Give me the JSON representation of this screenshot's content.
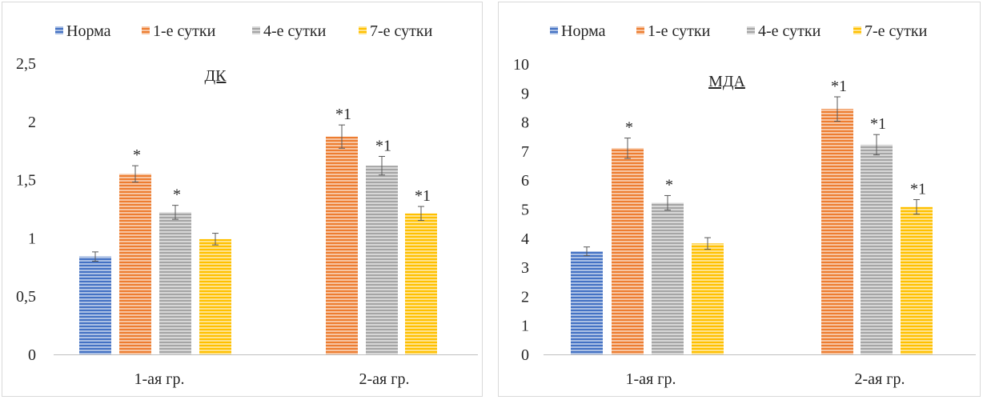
{
  "chart_data": [
    {
      "type": "bar",
      "title": "ДК",
      "categories": [
        "1-ая гр.",
        "2-ая гр."
      ],
      "ylim": [
        0,
        2.5
      ],
      "yticks": [
        "0",
        "0,5",
        "1",
        "1,5",
        "2",
        "2,5"
      ],
      "ytick_values": [
        0,
        0.5,
        1,
        1.5,
        2,
        2.5
      ],
      "grid": false,
      "legend_position": "top",
      "series": [
        {
          "name": "Норма",
          "color": "#4472c4",
          "values": [
            0.84,
            null
          ],
          "errors": [
            0.04,
            null
          ],
          "labels": [
            "",
            ""
          ]
        },
        {
          "name": "1-е сутки",
          "color": "#ed7d31",
          "values": [
            1.55,
            1.87
          ],
          "errors": [
            0.07,
            0.1
          ],
          "labels": [
            "*",
            "*1"
          ]
        },
        {
          "name": "4-е сутки",
          "color": "#a5a5a5",
          "values": [
            1.22,
            1.62
          ],
          "errors": [
            0.06,
            0.08
          ],
          "labels": [
            "*",
            "*1"
          ]
        },
        {
          "name": "7-е сутки",
          "color": "#ffc000",
          "values": [
            0.99,
            1.21
          ],
          "errors": [
            0.05,
            0.06
          ],
          "labels": [
            "",
            "*1"
          ]
        }
      ]
    },
    {
      "type": "bar",
      "title": "МДА",
      "categories": [
        "1-ая гр.",
        "2-ая гр."
      ],
      "ylim": [
        0,
        10
      ],
      "yticks": [
        "0",
        "1",
        "2",
        "3",
        "4",
        "5",
        "6",
        "7",
        "8",
        "9",
        "10"
      ],
      "ytick_values": [
        0,
        1,
        2,
        3,
        4,
        5,
        6,
        7,
        8,
        9,
        10
      ],
      "grid": false,
      "legend_position": "top",
      "series": [
        {
          "name": "Норма",
          "color": "#4472c4",
          "values": [
            3.55,
            null
          ],
          "errors": [
            0.15,
            null
          ],
          "labels": [
            "",
            ""
          ]
        },
        {
          "name": "1-е сутки",
          "color": "#ed7d31",
          "values": [
            7.1,
            8.45
          ],
          "errors": [
            0.35,
            0.42
          ],
          "labels": [
            "*",
            "*1"
          ]
        },
        {
          "name": "4-е сутки",
          "color": "#a5a5a5",
          "values": [
            5.22,
            7.22
          ],
          "errors": [
            0.25,
            0.35
          ],
          "labels": [
            "*",
            "*1"
          ]
        },
        {
          "name": "7-е сутки",
          "color": "#ffc000",
          "values": [
            3.82,
            5.08
          ],
          "errors": [
            0.2,
            0.25
          ],
          "labels": [
            "",
            "*1"
          ]
        }
      ]
    }
  ]
}
